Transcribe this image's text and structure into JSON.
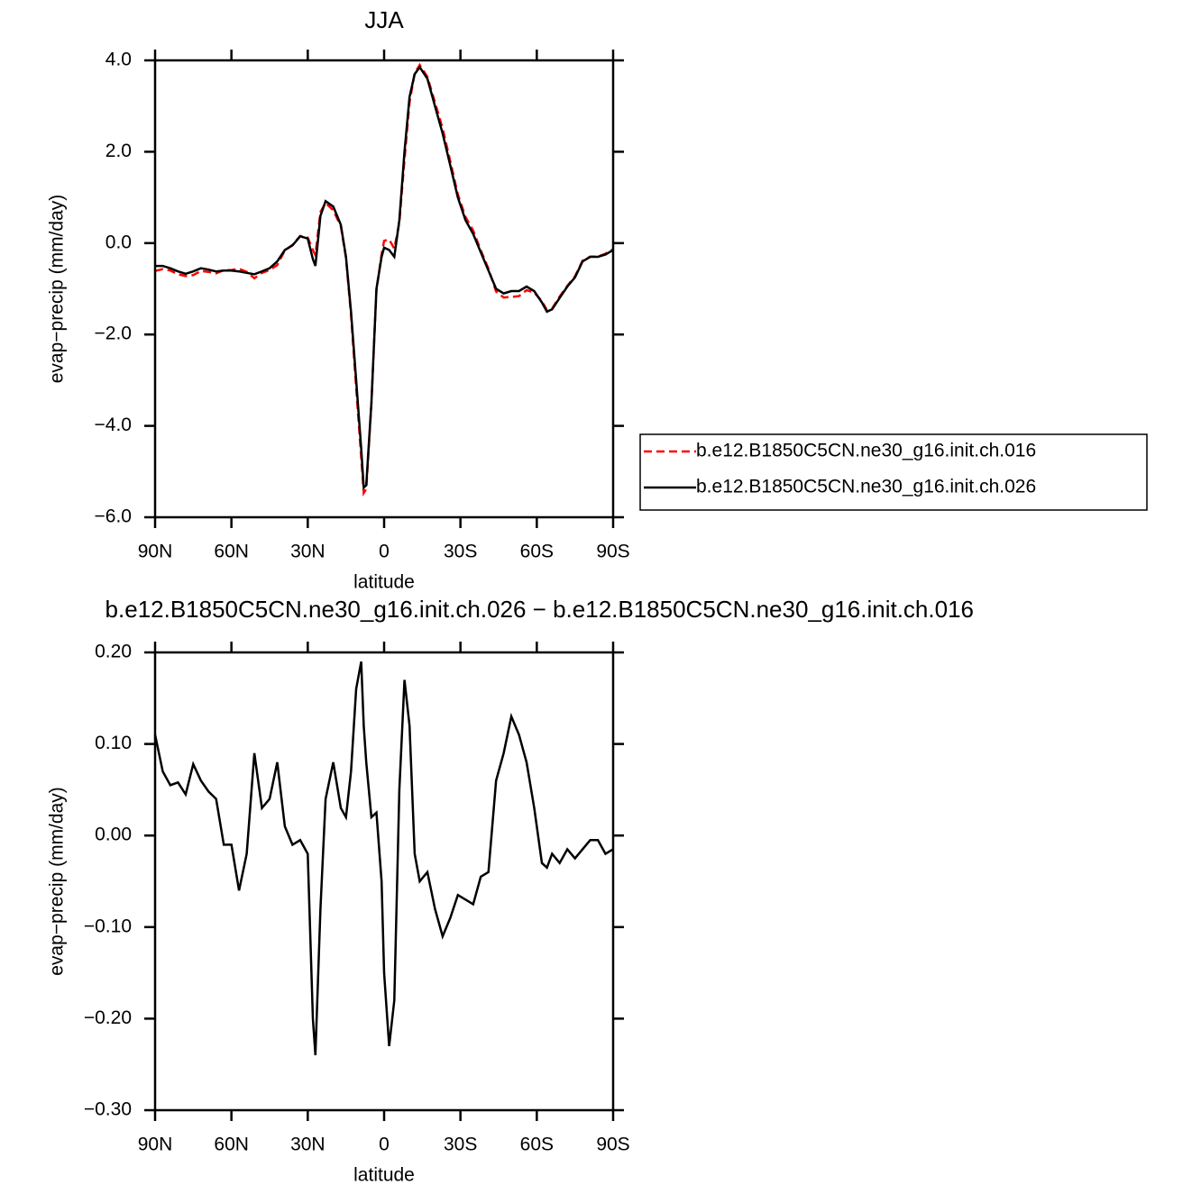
{
  "chart_data": [
    {
      "type": "line",
      "title": "JJA",
      "xlabel": "latitude",
      "ylabel": "evap−precip (mm/day)",
      "x": [
        90,
        87,
        84,
        81,
        78,
        75,
        72,
        69,
        66,
        63,
        60,
        57,
        54,
        51,
        48,
        45,
        42,
        39,
        36,
        33,
        30,
        28,
        27,
        25,
        23,
        20,
        17,
        15,
        13,
        11,
        9,
        8,
        7,
        5,
        3,
        1,
        0,
        -2,
        -4,
        -6,
        -8,
        -10,
        -12,
        -14,
        -17,
        -20,
        -23,
        -26,
        -29,
        -32,
        -35,
        -38,
        -41,
        -44,
        -47,
        -50,
        -53,
        -56,
        -59,
        -62,
        -64,
        -66,
        -69,
        -72,
        -75,
        -78,
        -81,
        -84,
        -87,
        -90
      ],
      "series": [
        {
          "name": "b.e12.B1850C5CN.ne30_g16.init.ch.016",
          "color": "#ff0000",
          "dash": "dashed",
          "values": [
            -0.61,
            -0.57,
            -0.6,
            -0.68,
            -0.72,
            -0.7,
            -0.61,
            -0.63,
            -0.66,
            -0.59,
            -0.59,
            -0.56,
            -0.63,
            -0.77,
            -0.65,
            -0.59,
            -0.48,
            -0.16,
            -0.04,
            0.155,
            0.12,
            -0.15,
            -0.26,
            0.68,
            0.88,
            0.72,
            0.37,
            -0.32,
            -1.57,
            -3.16,
            -4.69,
            -5.47,
            -5.38,
            -3.52,
            -1.025,
            -0.25,
            0.05,
            0.08,
            -0.12,
            0.45,
            1.83,
            3.08,
            3.72,
            3.9,
            3.64,
            3.08,
            2.51,
            1.79,
            1.065,
            0.57,
            0.275,
            -0.155,
            -0.56,
            -1.06,
            -1.19,
            -1.18,
            -1.16,
            -1.03,
            -1.08,
            -1.27,
            -1.465,
            -1.43,
            -1.17,
            -0.935,
            -0.725,
            -0.385,
            -0.295,
            -0.295,
            -0.23,
            -0.135
          ]
        },
        {
          "name": "b.e12.B1850C5CN.ne30_g16.init.ch.026",
          "color": "#000000",
          "dash": "solid",
          "values": [
            -0.5,
            -0.5,
            -0.55,
            -0.62,
            -0.67,
            -0.62,
            -0.55,
            -0.58,
            -0.62,
            -0.6,
            -0.6,
            -0.62,
            -0.65,
            -0.68,
            -0.62,
            -0.55,
            -0.4,
            -0.15,
            -0.05,
            0.15,
            0.1,
            -0.35,
            -0.5,
            0.6,
            0.92,
            0.8,
            0.4,
            -0.3,
            -1.5,
            -3.0,
            -4.5,
            -5.35,
            -5.3,
            -3.5,
            -1.0,
            -0.3,
            -0.1,
            -0.15,
            -0.3,
            0.5,
            2.0,
            3.2,
            3.7,
            3.85,
            3.6,
            3.0,
            2.4,
            1.7,
            1.0,
            0.5,
            0.2,
            -0.2,
            -0.6,
            -1.0,
            -1.1,
            -1.05,
            -1.05,
            -0.95,
            -1.05,
            -1.3,
            -1.5,
            -1.45,
            -1.2,
            -0.95,
            -0.75,
            -0.4,
            -0.3,
            -0.3,
            -0.25,
            -0.15
          ]
        }
      ],
      "xlim": [
        90,
        -90
      ],
      "xticks": [
        {
          "value": 90,
          "label": "90N"
        },
        {
          "value": 60,
          "label": "60N"
        },
        {
          "value": 30,
          "label": "30N"
        },
        0,
        {
          "value": -30,
          "label": "30S"
        },
        {
          "value": -60,
          "label": "60S"
        },
        {
          "value": -90,
          "label": "90S"
        }
      ],
      "ylim": [
        -6,
        4
      ],
      "yticks": [
        {
          "value": -6,
          "label": "−6.0"
        },
        {
          "value": -4,
          "label": "−4.0"
        },
        {
          "value": -2,
          "label": "−2.0"
        },
        {
          "value": 0,
          "label": "0.0"
        },
        {
          "value": 2,
          "label": "2.0"
        },
        {
          "value": 4,
          "label": "4.0"
        }
      ],
      "legend": "right"
    },
    {
      "type": "line",
      "title": "b.e12.B1850C5CN.ne30_g16.init.ch.026 − b.e12.B1850C5CN.ne30_g16.init.ch.016",
      "xlabel": "latitude",
      "ylabel": "evap−precip (mm/day)",
      "x": [
        90,
        87,
        84,
        81,
        78,
        75,
        72,
        69,
        66,
        63,
        60,
        57,
        54,
        51,
        48,
        45,
        42,
        39,
        36,
        33,
        30,
        28,
        27,
        25,
        23,
        20,
        17,
        15,
        13,
        11,
        9,
        8,
        7,
        5,
        3,
        1,
        0,
        -2,
        -4,
        -6,
        -8,
        -10,
        -12,
        -14,
        -17,
        -20,
        -23,
        -26,
        -29,
        -32,
        -35,
        -38,
        -41,
        -44,
        -47,
        -50,
        -53,
        -56,
        -59,
        -62,
        -64,
        -66,
        -69,
        -72,
        -75,
        -78,
        -81,
        -84,
        -87,
        -90
      ],
      "series": [
        {
          "color": "#000000",
          "dash": "solid",
          "values": [
            0.11,
            0.07,
            0.055,
            0.058,
            0.045,
            0.078,
            0.06,
            0.048,
            0.04,
            -0.01,
            -0.01,
            -0.06,
            -0.02,
            0.09,
            0.03,
            0.04,
            0.08,
            0.01,
            -0.01,
            -0.005,
            -0.02,
            -0.2,
            -0.24,
            -0.08,
            0.04,
            0.08,
            0.03,
            0.02,
            0.07,
            0.16,
            0.19,
            0.12,
            0.08,
            0.02,
            0.025,
            -0.05,
            -0.15,
            -0.23,
            -0.18,
            0.05,
            0.17,
            0.12,
            -0.02,
            -0.05,
            -0.04,
            -0.08,
            -0.11,
            -0.09,
            -0.065,
            -0.07,
            -0.075,
            -0.045,
            -0.04,
            0.06,
            0.09,
            0.13,
            0.11,
            0.08,
            0.03,
            -0.03,
            -0.035,
            -0.02,
            -0.03,
            -0.015,
            -0.025,
            -0.015,
            -0.005,
            -0.005,
            -0.02,
            -0.015
          ]
        }
      ],
      "xlim": [
        90,
        -90
      ],
      "xticks": [
        {
          "value": 90,
          "label": "90N"
        },
        {
          "value": 60,
          "label": "60N"
        },
        {
          "value": 30,
          "label": "30N"
        },
        0,
        {
          "value": -30,
          "label": "30S"
        },
        {
          "value": -60,
          "label": "60S"
        },
        {
          "value": -90,
          "label": "90S"
        }
      ],
      "ylim": [
        -0.3,
        0.2
      ],
      "yticks": [
        {
          "value": -0.3,
          "label": "−0.30"
        },
        {
          "value": -0.2,
          "label": "−0.20"
        },
        {
          "value": -0.1,
          "label": "−0.10"
        },
        {
          "value": 0,
          "label": "0.00"
        },
        {
          "value": 0.1,
          "label": "0.10"
        },
        {
          "value": 0.2,
          "label": "0.20"
        }
      ]
    }
  ]
}
